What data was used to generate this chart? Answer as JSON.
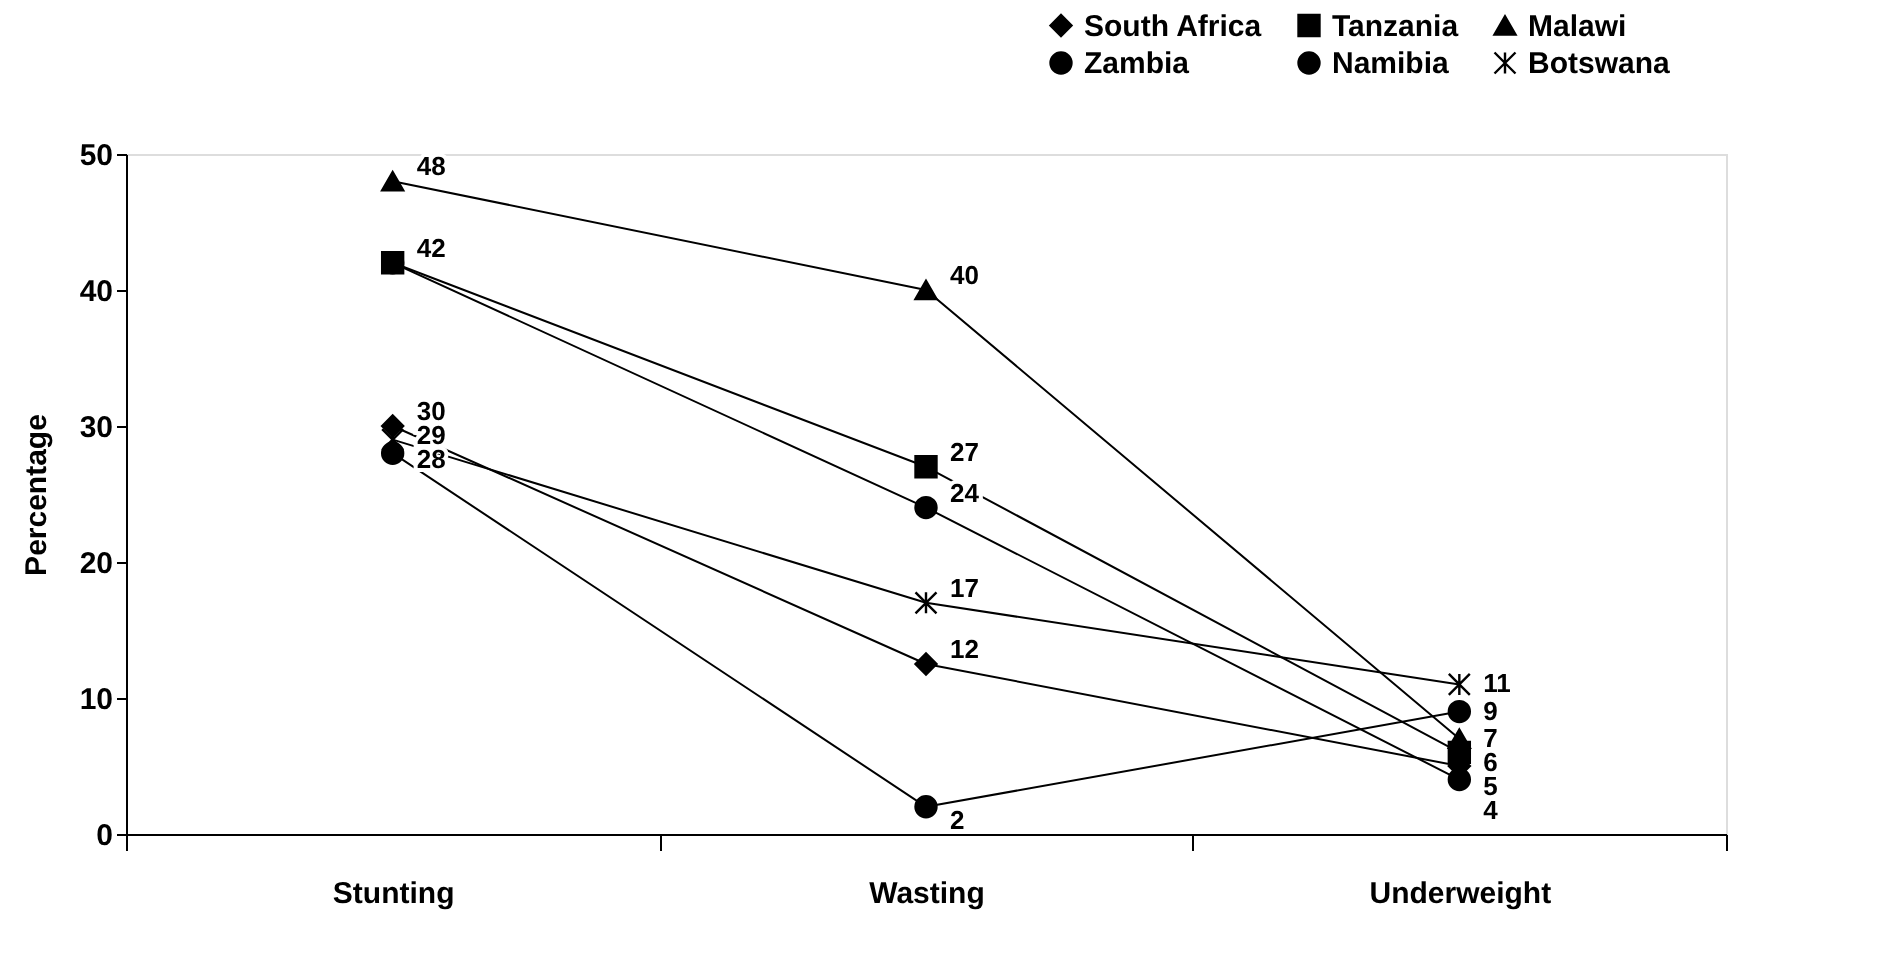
{
  "chart_data": {
    "type": "line",
    "ylabel": "Percentage",
    "categories": [
      "Stunting",
      "Wasting",
      "Underweight"
    ],
    "ylim": [
      0,
      50
    ],
    "yticks": [
      0,
      10,
      20,
      30,
      40,
      50
    ],
    "grid": false,
    "legend": "top right",
    "line_style": "solid",
    "series": [
      {
        "name": "South Africa",
        "color": "#000000",
        "marker": "diamond",
        "values": [
          30,
          12.5,
          5
        ],
        "value_labels": [
          "30",
          "12",
          "5"
        ]
      },
      {
        "name": "Tanzania",
        "color": "#000000",
        "marker": "square",
        "values": [
          42,
          27,
          6
        ],
        "value_labels": [
          "42",
          "27",
          "6"
        ]
      },
      {
        "name": "Malawi",
        "color": "#000000",
        "marker": "triangle",
        "values": [
          48,
          40,
          7
        ],
        "value_labels": [
          "48",
          "40",
          "7"
        ]
      },
      {
        "name": "Zambia",
        "color": "#000000",
        "marker": "circle",
        "values": [
          42,
          24,
          4
        ],
        "value_labels": [
          null,
          "24",
          "4"
        ]
      },
      {
        "name": "Namibia",
        "color": "#000000",
        "marker": "circle",
        "values": [
          28,
          2,
          9
        ],
        "value_labels": [
          "28",
          "2",
          "9"
        ]
      },
      {
        "name": "Botswana",
        "color": "#000000",
        "marker": "cross",
        "values": [
          29,
          17,
          11
        ],
        "value_labels": [
          "29",
          "17",
          "11"
        ]
      }
    ]
  }
}
